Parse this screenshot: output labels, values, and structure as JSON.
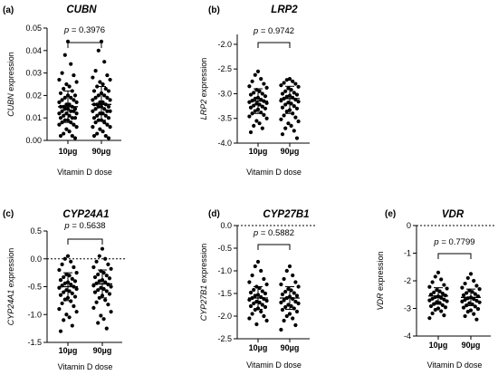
{
  "chart_data": [
    {
      "type": "scatter",
      "panel_label": "(a)",
      "title": "CUBN",
      "ylabel_italic": "CUBN",
      "ylabel_rest": " expression",
      "xlabel": "Vitamin D dose",
      "categories": [
        "10µg",
        "90µg"
      ],
      "ylim": [
        0,
        0.05
      ],
      "yticks": [
        "0.00",
        "0.01",
        "0.02",
        "0.03",
        "0.04",
        "0.05"
      ],
      "p_value": "= 0.3976",
      "zero_line": false,
      "series": [
        {
          "category": "10µg",
          "mean": 0.015,
          "sd_low": 0.008,
          "sd_high": 0.022,
          "values": [
            0.044,
            0.038,
            0.034,
            0.03,
            0.029,
            0.027,
            0.026,
            0.025,
            0.024,
            0.023,
            0.022,
            0.021,
            0.02,
            0.02,
            0.019,
            0.019,
            0.018,
            0.018,
            0.017,
            0.017,
            0.016,
            0.016,
            0.015,
            0.015,
            0.015,
            0.014,
            0.014,
            0.014,
            0.013,
            0.013,
            0.013,
            0.012,
            0.012,
            0.012,
            0.011,
            0.011,
            0.01,
            0.01,
            0.01,
            0.009,
            0.009,
            0.008,
            0.008,
            0.007,
            0.007,
            0.006,
            0.005,
            0.004,
            0.003,
            0.002,
            0.002,
            0.001
          ]
        },
        {
          "category": "90µg",
          "mean": 0.016,
          "sd_low": 0.009,
          "sd_high": 0.024,
          "values": [
            0.044,
            0.04,
            0.035,
            0.031,
            0.029,
            0.028,
            0.027,
            0.026,
            0.025,
            0.024,
            0.023,
            0.022,
            0.022,
            0.021,
            0.02,
            0.02,
            0.019,
            0.019,
            0.018,
            0.018,
            0.017,
            0.017,
            0.016,
            0.016,
            0.016,
            0.015,
            0.015,
            0.015,
            0.014,
            0.014,
            0.013,
            0.013,
            0.013,
            0.012,
            0.012,
            0.011,
            0.011,
            0.01,
            0.01,
            0.009,
            0.009,
            0.008,
            0.008,
            0.007,
            0.006,
            0.006,
            0.005,
            0.004,
            0.003,
            0.002,
            0.002,
            0.001
          ]
        }
      ]
    },
    {
      "type": "scatter",
      "panel_label": "(b)",
      "title": "LRP2",
      "ylabel_italic": "LRP2",
      "ylabel_rest": " expression",
      "xlabel": "Vitamin D dose",
      "categories": [
        "10µg",
        "90µg"
      ],
      "ylim": [
        -4.0,
        -1.8
      ],
      "yticks": [
        "-4.0",
        "-3.5",
        "-3.0",
        "-2.5",
        "-2.0"
      ],
      "ytick_values": [
        -4.0,
        -3.5,
        -3.0,
        -2.5,
        -2.0
      ],
      "p_value": "= 0.9742",
      "zero_line": false,
      "series": [
        {
          "category": "10µg",
          "mean": -3.15,
          "sd_low": -3.4,
          "sd_high": -2.9,
          "values": [
            -2.55,
            -2.62,
            -2.7,
            -2.75,
            -2.8,
            -2.85,
            -2.88,
            -2.92,
            -2.95,
            -2.98,
            -3.0,
            -3.02,
            -3.05,
            -3.08,
            -3.1,
            -3.12,
            -3.14,
            -3.15,
            -3.17,
            -3.19,
            -3.2,
            -3.22,
            -3.24,
            -3.26,
            -3.28,
            -3.3,
            -3.32,
            -3.35,
            -3.38,
            -3.4,
            -3.43,
            -3.46,
            -3.5,
            -3.55,
            -3.6,
            -3.65,
            -3.7,
            -3.78
          ]
        },
        {
          "category": "90µg",
          "mean": -3.1,
          "sd_low": -3.4,
          "sd_high": -2.85,
          "values": [
            -2.7,
            -2.72,
            -2.75,
            -2.78,
            -2.8,
            -2.83,
            -2.86,
            -2.89,
            -2.92,
            -2.95,
            -2.98,
            -3.0,
            -3.02,
            -3.04,
            -3.06,
            -3.08,
            -3.1,
            -3.12,
            -3.14,
            -3.16,
            -3.18,
            -3.2,
            -3.22,
            -3.25,
            -3.28,
            -3.3,
            -3.33,
            -3.36,
            -3.4,
            -3.44,
            -3.48,
            -3.52,
            -3.56,
            -3.6,
            -3.65,
            -3.7,
            -3.75,
            -3.82,
            -3.9
          ]
        }
      ]
    },
    {
      "type": "scatter",
      "panel_label": "(c)",
      "title": "CYP24A1",
      "ylabel_italic": "CYP24A1",
      "ylabel_rest": " expression",
      "xlabel": "Vitamin D dose",
      "categories": [
        "10µg",
        "90µg"
      ],
      "ylim": [
        -1.5,
        0.5
      ],
      "yticks": [
        "-1.5",
        "-1.0",
        "-0.5",
        "0.0",
        "0.5"
      ],
      "ytick_values": [
        -1.5,
        -1.0,
        -0.5,
        0.0,
        0.5
      ],
      "p_value": "= 0.5638",
      "zero_line": true,
      "series": [
        {
          "category": "10µg",
          "mean": -0.5,
          "sd_low": -0.75,
          "sd_high": -0.25,
          "values": [
            0.05,
            0.0,
            -0.05,
            -0.1,
            -0.15,
            -0.2,
            -0.25,
            -0.28,
            -0.3,
            -0.33,
            -0.36,
            -0.38,
            -0.4,
            -0.42,
            -0.44,
            -0.46,
            -0.48,
            -0.5,
            -0.52,
            -0.54,
            -0.56,
            -0.58,
            -0.6,
            -0.62,
            -0.65,
            -0.68,
            -0.7,
            -0.73,
            -0.76,
            -0.8,
            -0.85,
            -0.9,
            -0.95,
            -1.0,
            -1.05,
            -1.1,
            -1.2,
            -1.3
          ]
        },
        {
          "category": "90µg",
          "mean": -0.45,
          "sd_low": -0.7,
          "sd_high": -0.2,
          "values": [
            0.18,
            0.05,
            0.0,
            -0.05,
            -0.1,
            -0.15,
            -0.18,
            -0.22,
            -0.25,
            -0.28,
            -0.3,
            -0.33,
            -0.35,
            -0.38,
            -0.4,
            -0.42,
            -0.44,
            -0.46,
            -0.48,
            -0.5,
            -0.52,
            -0.54,
            -0.56,
            -0.58,
            -0.6,
            -0.63,
            -0.66,
            -0.7,
            -0.74,
            -0.78,
            -0.82,
            -0.88,
            -0.95,
            -1.02,
            -1.08,
            -1.15,
            -1.25
          ]
        }
      ]
    },
    {
      "type": "scatter",
      "panel_label": "(d)",
      "title": "CYP27B1",
      "ylabel_italic": "CYP27B1",
      "ylabel_rest": " expression",
      "xlabel": "Vitamin D dose",
      "categories": [
        "10µg",
        "90µg"
      ],
      "ylim": [
        -2.5,
        0.0
      ],
      "yticks": [
        "-2.5",
        "-2.0",
        "-1.5",
        "-1.0",
        "-0.5",
        "0.0"
      ],
      "ytick_values": [
        -2.5,
        -2.0,
        -1.5,
        -1.0,
        -0.5,
        0.0
      ],
      "p_value": "= 0.5882",
      "zero_line": true,
      "series": [
        {
          "category": "10µg",
          "mean": -1.6,
          "sd_low": -1.85,
          "sd_high": -1.35,
          "values": [
            -0.8,
            -0.9,
            -1.0,
            -1.1,
            -1.18,
            -1.25,
            -1.3,
            -1.35,
            -1.38,
            -1.42,
            -1.45,
            -1.48,
            -1.5,
            -1.53,
            -1.55,
            -1.58,
            -1.6,
            -1.62,
            -1.64,
            -1.66,
            -1.68,
            -1.7,
            -1.72,
            -1.75,
            -1.78,
            -1.8,
            -1.83,
            -1.86,
            -1.9,
            -1.95,
            -2.0,
            -2.05,
            -2.1,
            -2.18
          ]
        },
        {
          "category": "90µg",
          "mean": -1.6,
          "sd_low": -1.85,
          "sd_high": -1.35,
          "values": [
            -0.9,
            -1.0,
            -1.1,
            -1.18,
            -1.25,
            -1.3,
            -1.35,
            -1.4,
            -1.43,
            -1.46,
            -1.49,
            -1.52,
            -1.55,
            -1.57,
            -1.6,
            -1.62,
            -1.65,
            -1.68,
            -1.7,
            -1.72,
            -1.75,
            -1.78,
            -1.8,
            -1.83,
            -1.86,
            -1.9,
            -1.95,
            -2.0,
            -2.05,
            -2.1,
            -2.2,
            -2.3
          ]
        }
      ]
    },
    {
      "type": "scatter",
      "panel_label": "(e)",
      "title": "VDR",
      "ylabel_italic": "VDR",
      "ylabel_rest": " expression",
      "xlabel": "Vitamin D dose",
      "categories": [
        "10µg",
        "90µg"
      ],
      "ylim": [
        -4,
        0
      ],
      "yticks": [
        "-4",
        "-3",
        "-2",
        "-1",
        "0"
      ],
      "ytick_values": [
        -4,
        -3,
        -2,
        -1,
        0
      ],
      "p_value": "= 0.7799",
      "zero_line": true,
      "series": [
        {
          "category": "10µg",
          "mean": -2.55,
          "sd_low": -2.85,
          "sd_high": -2.25,
          "values": [
            -1.7,
            -1.85,
            -1.95,
            -2.05,
            -2.15,
            -2.22,
            -2.28,
            -2.33,
            -2.38,
            -2.42,
            -2.46,
            -2.5,
            -2.53,
            -2.56,
            -2.59,
            -2.62,
            -2.65,
            -2.68,
            -2.71,
            -2.74,
            -2.77,
            -2.8,
            -2.84,
            -2.88,
            -2.92,
            -2.96,
            -3.0,
            -3.05,
            -3.1,
            -3.18,
            -3.25,
            -3.35
          ]
        },
        {
          "category": "90µg",
          "mean": -2.6,
          "sd_low": -2.9,
          "sd_high": -2.3,
          "values": [
            -1.75,
            -1.9,
            -2.0,
            -2.1,
            -2.18,
            -2.25,
            -2.3,
            -2.35,
            -2.4,
            -2.44,
            -2.48,
            -2.52,
            -2.56,
            -2.6,
            -2.63,
            -2.66,
            -2.69,
            -2.72,
            -2.75,
            -2.78,
            -2.81,
            -2.85,
            -2.89,
            -2.93,
            -2.97,
            -3.02,
            -3.07,
            -3.12,
            -3.2,
            -3.28,
            -3.4
          ]
        }
      ]
    }
  ]
}
